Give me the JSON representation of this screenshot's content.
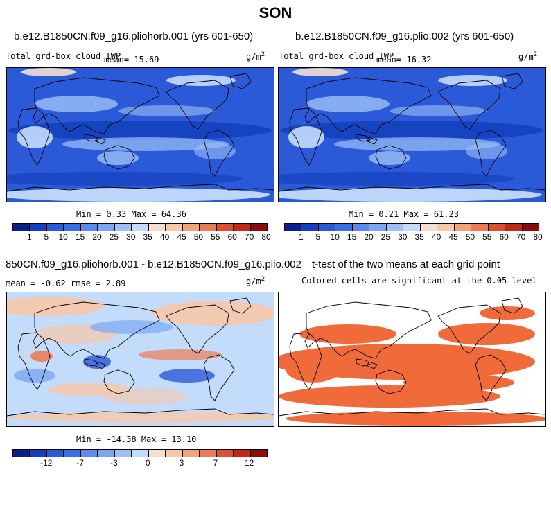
{
  "title": "SON",
  "panels": [
    {
      "case_title": "b.e12.B1850CN.f09_g16.pliohorb.001 (yrs 601-650)",
      "left_label": "Total grd-box cloud IWP",
      "mean_text": "mean=  15.69",
      "units": "g/m",
      "units_exp": "2",
      "minmax": "Min =    0.33 Max =  64.36"
    },
    {
      "case_title": "b.e12.B1850CN.f09_g16.plio.002 (yrs 601-650)",
      "left_label": "Total grd-box cloud IWP",
      "mean_text": "mean=  16.32",
      "units": "g/m",
      "units_exp": "2",
      "minmax": "Min =    0.21 Max =  61.23"
    },
    {
      "case_title": "850CN.f09_g16.pliohorb.001 - b.e12.B1850CN.f09_g16.plio.002",
      "left_label": "mean =  -0.62     rmse =    2.89",
      "units": "g/m",
      "units_exp": "2",
      "minmax": "Min = -14.38 Max =  13.10"
    },
    {
      "case_title": "t-test of the two means at each grid point",
      "left_label": "Colored cells are significant at the 0.05 level"
    }
  ],
  "colorbar_abs": {
    "colors": [
      "#0a1e8c",
      "#1440c0",
      "#2a5ad8",
      "#3c6ee6",
      "#5a8cf0",
      "#7aa6f4",
      "#9cc0f8",
      "#c4dcfc",
      "#f4e0cc",
      "#f8c8a8",
      "#f4a47c",
      "#ec7c54",
      "#dc5030",
      "#c02818",
      "#8c0c08"
    ],
    "labels": [
      "1",
      "5",
      "10",
      "15",
      "20",
      "25",
      "30",
      "35",
      "40",
      "45",
      "50",
      "55",
      "60",
      "70",
      "80"
    ]
  },
  "colorbar_diff": {
    "colors": [
      "#0a1e8c",
      "#1440c0",
      "#2a5ad8",
      "#3c6ee6",
      "#5a8cf0",
      "#7aa6f4",
      "#9cc0f8",
      "#c4dcfc",
      "#f4e0cc",
      "#f8c8a8",
      "#f4a47c",
      "#ec7c54",
      "#dc5030",
      "#c02818",
      "#8c0c08"
    ],
    "labels": [
      "-12",
      "-7",
      "-3",
      "0",
      "3",
      "7",
      "12"
    ]
  },
  "map_colors": {
    "abs_base": "#2a5ad8",
    "abs_dark": "#1440c0",
    "abs_light": "#9cc0f8",
    "abs_pale": "#c4dcfc",
    "abs_warm": "#f4e0cc",
    "diff_base": "#c4dcfc",
    "diff_blue": "#7aa6f4",
    "diff_dark": "#2a5ad8",
    "diff_warm": "#f8c8a8",
    "diff_red": "#ec7c54",
    "sig": "#f06a3a"
  }
}
